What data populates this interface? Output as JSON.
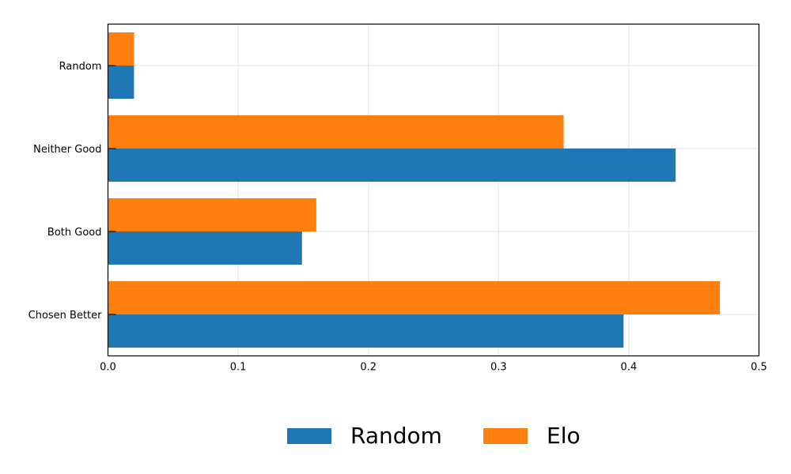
{
  "chart_data": {
    "type": "bar",
    "orientation": "horizontal",
    "categories": [
      "Chosen Better",
      "Both Good",
      "Neither Good",
      "Random"
    ],
    "series": [
      {
        "name": "Random",
        "color": "#1f77b4",
        "values": [
          0.396,
          0.149,
          0.436,
          0.02
        ]
      },
      {
        "name": "Elo",
        "color": "#ff7f0e",
        "values": [
          0.47,
          0.16,
          0.35,
          0.02
        ]
      }
    ],
    "xlim": [
      0,
      0.5
    ],
    "xticks": [
      "0.0",
      "0.1",
      "0.2",
      "0.3",
      "0.4",
      "0.5"
    ],
    "title": "",
    "xlabel": "",
    "ylabel": "",
    "grid": true,
    "legend_position": "bottom-center"
  }
}
